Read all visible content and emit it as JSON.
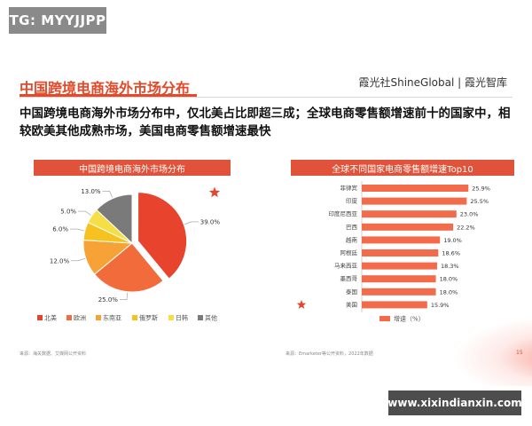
{
  "watermark": "TG: MYYJJPP",
  "slide": {
    "title": "中国跨境电商海外市场分布",
    "brand": "霞光社ShineGlobal | 霞光智库",
    "headline": "中国跨境电商海外市场分布中，仅北美占比即超三成；全球电商零售额增速前十的国家中，相较欧美其他成熟市场，美国电商零售额增速最快",
    "page_number": "15"
  },
  "pie_panel": {
    "header": "中国跨境电商海外市场分布",
    "source": "来源：海关数据、艾媒网公开资料",
    "star_color": "#e8432d"
  },
  "bar_panel": {
    "header": "全球不同国家电商零售额增速Top10",
    "source": "来源：Emarketer等公开资料，2022年数据",
    "bar_color": "#f26b4a"
  },
  "site_badge": "www.xixindianxin.com",
  "chart_data": [
    {
      "type": "pie",
      "title": "中国跨境电商海外市场分布",
      "categories": [
        "北美",
        "欧洲",
        "东南亚",
        "俄罗斯",
        "日韩",
        "其他"
      ],
      "values": [
        39.0,
        25.0,
        12.0,
        6.0,
        5.0,
        13.0
      ],
      "value_labels": [
        "39.0%",
        "25.0%",
        "12.0%",
        "6.0%",
        "5.0%",
        "13.0%"
      ],
      "colors": [
        "#e8432d",
        "#f26b3a",
        "#f7a236",
        "#f6c21f",
        "#f5de46",
        "#7a7a7a"
      ],
      "legend_position": "bottom"
    },
    {
      "type": "bar",
      "orientation": "horizontal",
      "title": "全球不同国家电商零售额增速Top10",
      "categories": [
        "菲律宾",
        "印度",
        "印度尼西亚",
        "巴西",
        "越南",
        "阿根廷",
        "马来西亚",
        "墨西哥",
        "泰国",
        "美国"
      ],
      "values": [
        25.9,
        25.5,
        23.0,
        22.2,
        19.0,
        18.6,
        18.3,
        18.0,
        18.0,
        15.9
      ],
      "value_labels": [
        "25.9%",
        "25.5%",
        "23.0%",
        "22.2%",
        "19.0%",
        "18.6%",
        "18.3%",
        "18.0%",
        "18.0%",
        "15.9%"
      ],
      "highlight": "美国",
      "legend": "增速（%）",
      "xlim": [
        0,
        28
      ],
      "legend_position": "bottom"
    }
  ]
}
